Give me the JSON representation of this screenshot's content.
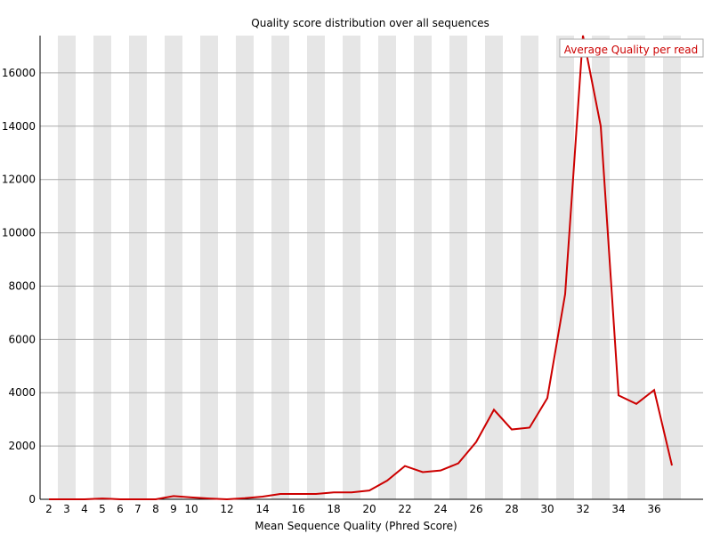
{
  "chart_data": {
    "type": "line",
    "title": "Quality score distribution over all sequences",
    "xlabel": "Mean Sequence Quality (Phred Score)",
    "ylabel": "",
    "x": [
      2,
      3,
      4,
      5,
      6,
      7,
      8,
      9,
      10,
      11,
      12,
      13,
      14,
      15,
      16,
      17,
      18,
      19,
      20,
      21,
      22,
      23,
      24,
      25,
      26,
      27,
      28,
      29,
      30,
      31,
      32,
      33,
      34,
      35,
      36,
      37
    ],
    "x_tick_labels": [
      "2",
      "3",
      "4",
      "5",
      "6",
      "7",
      "8",
      "9",
      "10",
      "12",
      "14",
      "16",
      "18",
      "20",
      "22",
      "24",
      "26",
      "28",
      "30",
      "32",
      "34",
      "36"
    ],
    "x_tick_values": [
      2,
      3,
      4,
      5,
      6,
      7,
      8,
      9,
      10,
      12,
      14,
      16,
      18,
      20,
      22,
      24,
      26,
      28,
      30,
      32,
      34,
      36
    ],
    "y_ticks": [
      0,
      2000,
      4000,
      6000,
      8000,
      10000,
      12000,
      14000,
      16000
    ],
    "ylim": [
      0,
      17400
    ],
    "xlim": [
      1.5,
      37.5
    ],
    "series": [
      {
        "name": "Average Quality per read",
        "color": "#cc0000",
        "values": [
          0,
          0,
          0,
          30,
          0,
          0,
          0,
          120,
          70,
          30,
          0,
          40,
          100,
          200,
          200,
          200,
          260,
          260,
          330,
          700,
          1250,
          1020,
          1080,
          1350,
          2150,
          3360,
          2620,
          2690,
          3800,
          7700,
          17400,
          14000,
          3900,
          3580,
          4100,
          1270
        ]
      }
    ],
    "legend_position": "top-right",
    "grid": true,
    "band_color": "#e6e6e6",
    "grid_color": "#aaaaaa"
  }
}
